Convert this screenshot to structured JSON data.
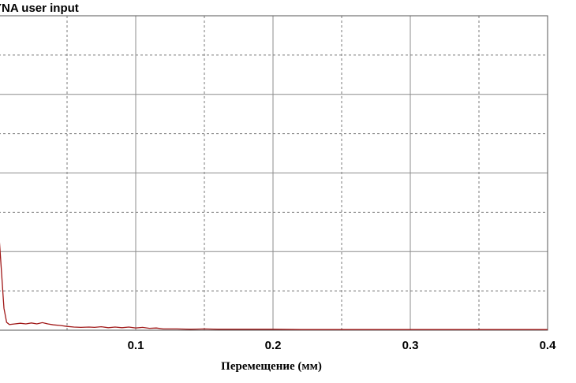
{
  "chart_data": {
    "type": "line",
    "title": "YNA user input",
    "xlabel": "Перемещение (мм)",
    "ylabel": "",
    "xlim": [
      0,
      0.4
    ],
    "ylim": [
      0,
      1
    ],
    "grid": true,
    "x_ticks": [
      0.1,
      0.2,
      0.3,
      0.4
    ],
    "x_tick_labels": [
      "0.1",
      "0.2",
      "0.3",
      "0.4"
    ],
    "colors": {
      "series": "#a01818",
      "grid": "#8c8c8c",
      "frame": "#555555"
    },
    "series": [
      {
        "x": [
          0,
          0.002,
          0.004,
          0.006,
          0.008,
          0.012,
          0.016,
          0.02,
          0.024,
          0.028,
          0.032,
          0.036,
          0.04,
          0.045,
          0.05,
          0.055,
          0.06,
          0.066,
          0.07,
          0.075,
          0.08,
          0.085,
          0.09,
          0.095,
          0.1,
          0.105,
          0.11,
          0.115,
          0.12,
          0.13,
          0.14,
          0.15,
          0.16,
          0.17,
          0.18,
          0.2,
          0.22,
          0.24,
          0.26,
          0.28,
          0.3,
          0.32,
          0.34,
          0.36,
          0.38,
          0.4
        ],
        "y": [
          0.33,
          0.2,
          0.07,
          0.025,
          0.018,
          0.02,
          0.022,
          0.02,
          0.023,
          0.02,
          0.024,
          0.02,
          0.017,
          0.015,
          0.012,
          0.01,
          0.009,
          0.01,
          0.009,
          0.011,
          0.008,
          0.01,
          0.008,
          0.01,
          0.007,
          0.009,
          0.006,
          0.007,
          0.004,
          0.004,
          0.003,
          0.004,
          0.003,
          0.003,
          0.003,
          0.003,
          0.002,
          0.002,
          0.002,
          0.002,
          0.002,
          0.002,
          0.002,
          0.002,
          0.002,
          0.002
        ]
      }
    ]
  }
}
